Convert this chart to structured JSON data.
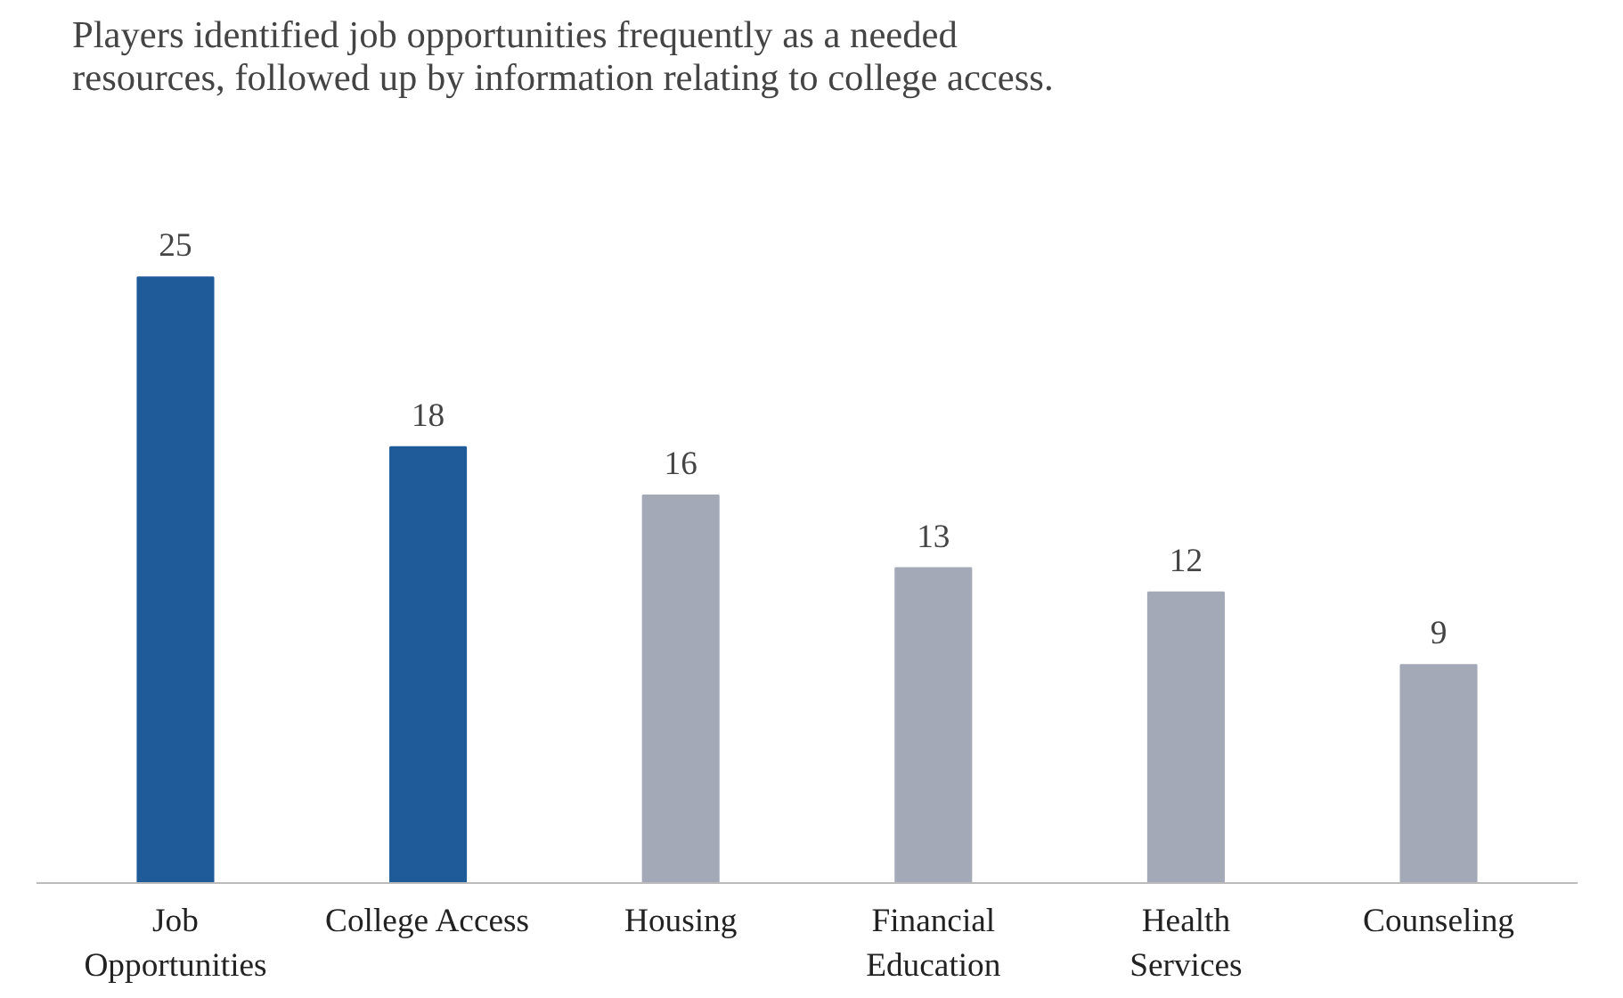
{
  "chart_data": {
    "type": "bar",
    "title": "Players identified job opportunities frequently as a needed\nresources, followed up by information relating to college access.",
    "categories": [
      "Job\nOpportunities",
      "College Access",
      "Housing",
      "Financial\nEducation",
      "Health\nServices",
      "Counseling"
    ],
    "values": [
      25,
      18,
      16,
      13,
      12,
      9
    ],
    "colors": [
      "#1f5b98",
      "#1f5b98",
      "#a4a9b8",
      "#a4a9b8",
      "#a4a9b8",
      "#a4a9b8"
    ],
    "data_labels": true,
    "grid": false
  }
}
